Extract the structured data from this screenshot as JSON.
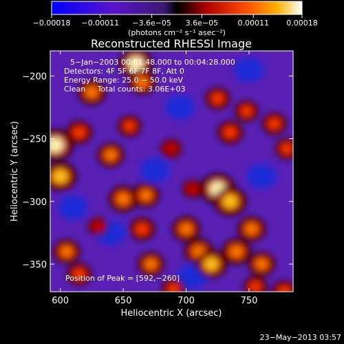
{
  "chart_data": {
    "type": "heatmap",
    "title": "Reconstructed RHESSI Image",
    "xlabel": "Heliocentric X (arcsec)",
    "ylabel": "Heliocentric Y (arcsec)",
    "xlim": [
      592,
      785
    ],
    "ylim": [
      -372,
      -180
    ],
    "xticks": [
      600,
      650,
      700,
      750
    ],
    "xtick_labels": [
      "600",
      "650",
      "700",
      "750"
    ],
    "yticks": [
      -350,
      -300,
      -250,
      -200
    ],
    "ytick_labels": [
      "−350",
      "−300",
      "−250",
      "−200"
    ],
    "colorbar": {
      "range": [
        -0.00018,
        0.00018
      ],
      "ticks": [
        -0.00018,
        -0.00011,
        -3.6e-05,
        3.6e-05,
        0.00011,
        0.00018
      ],
      "tick_labels": [
        "−0.00018",
        "−0.00011",
        "−3.6e−05",
        "3.6e−05",
        "0.00011",
        "0.00018"
      ],
      "unit_label": "(photons cm⁻² s⁻¹ asec⁻²)"
    },
    "annotations": [
      "5−Jan−2003 00:01:48.000 to 00:04:28.000",
      "Detectors: 4F 5F 6F 7F 8F, Att 0",
      "Energy Range: 25.0 − 50.0 keV",
      "Clean     Total counts: 3.06E+03"
    ],
    "peak_label": "Position of Peak = [592,−260]",
    "peak": [
      592,
      -260
    ],
    "sources": [
      {
        "x": 596,
        "y": -255,
        "value": 1.0
      },
      {
        "x": 600,
        "y": -280,
        "value": 0.85
      },
      {
        "x": 615,
        "y": -245,
        "value": 0.55
      },
      {
        "x": 625,
        "y": -213,
        "value": 0.65
      },
      {
        "x": 660,
        "y": -190,
        "value": 0.9
      },
      {
        "x": 665,
        "y": -205,
        "value": 0.6
      },
      {
        "x": 640,
        "y": -263,
        "value": 0.6
      },
      {
        "x": 655,
        "y": -240,
        "value": 0.45
      },
      {
        "x": 650,
        "y": -298,
        "value": 0.7
      },
      {
        "x": 668,
        "y": -295,
        "value": 0.6
      },
      {
        "x": 665,
        "y": -322,
        "value": 0.55
      },
      {
        "x": 672,
        "y": -350,
        "value": 0.6
      },
      {
        "x": 605,
        "y": -340,
        "value": 0.6
      },
      {
        "x": 615,
        "y": -358,
        "value": 0.5
      },
      {
        "x": 700,
        "y": -322,
        "value": 0.65
      },
      {
        "x": 710,
        "y": -340,
        "value": 0.7
      },
      {
        "x": 725,
        "y": -290,
        "value": 0.95
      },
      {
        "x": 735,
        "y": -300,
        "value": 0.85
      },
      {
        "x": 720,
        "y": -350,
        "value": 0.8
      },
      {
        "x": 740,
        "y": -340,
        "value": 0.7
      },
      {
        "x": 752,
        "y": -322,
        "value": 0.65
      },
      {
        "x": 760,
        "y": -350,
        "value": 0.6
      },
      {
        "x": 725,
        "y": -218,
        "value": 0.5
      },
      {
        "x": 735,
        "y": -245,
        "value": 0.55
      },
      {
        "x": 748,
        "y": -228,
        "value": 0.45
      },
      {
        "x": 770,
        "y": -238,
        "value": 0.5
      },
      {
        "x": 780,
        "y": -258,
        "value": 0.45
      },
      {
        "x": 778,
        "y": -372,
        "value": 0.5
      },
      {
        "x": 755,
        "y": -368,
        "value": 0.45
      },
      {
        "x": 688,
        "y": -258,
        "value": 0.35
      },
      {
        "x": 705,
        "y": -290,
        "value": 0.3
      },
      {
        "x": 630,
        "y": -320,
        "value": 0.3
      },
      {
        "x": 690,
        "y": -370,
        "value": 0.45
      }
    ],
    "negative_sources": [
      {
        "x": 640,
        "y": -325,
        "value": -0.6
      },
      {
        "x": 695,
        "y": -225,
        "value": -0.55
      },
      {
        "x": 750,
        "y": -195,
        "value": -0.5
      },
      {
        "x": 610,
        "y": -305,
        "value": -0.45
      },
      {
        "x": 760,
        "y": -280,
        "value": -0.45
      },
      {
        "x": 675,
        "y": -275,
        "value": -0.4
      },
      {
        "x": 705,
        "y": -360,
        "value": -0.4
      }
    ]
  },
  "timestamp": "23−May−2013 03:57"
}
